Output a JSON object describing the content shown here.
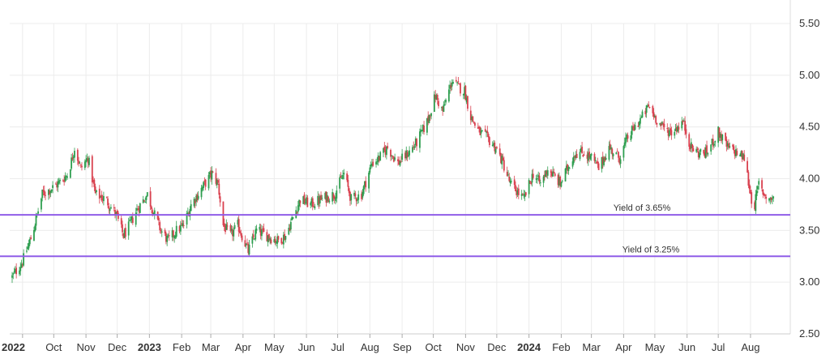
{
  "chart_data": {
    "type": "candlestick",
    "y_range": [
      2.5,
      5.5
    ],
    "y_ticks": [
      "5.50",
      "5.00",
      "4.50",
      "4.00",
      "3.50",
      "3.00",
      "2.50"
    ],
    "x_labels": [
      {
        "label": "2022",
        "bold": true,
        "date": "2022-09-01"
      },
      {
        "label": "Oct",
        "date": "2022-10-01"
      },
      {
        "label": "Nov",
        "date": "2022-11-01"
      },
      {
        "label": "Dec",
        "date": "2022-12-01"
      },
      {
        "label": "2023",
        "bold": true,
        "date": "2023-01-01"
      },
      {
        "label": "Feb",
        "date": "2023-02-01"
      },
      {
        "label": "Mar",
        "date": "2023-03-01"
      },
      {
        "label": "Apr",
        "date": "2023-04-01"
      },
      {
        "label": "May",
        "date": "2023-05-01"
      },
      {
        "label": "Jun",
        "date": "2023-06-01"
      },
      {
        "label": "Jul",
        "date": "2023-07-01"
      },
      {
        "label": "Aug",
        "date": "2023-08-01"
      },
      {
        "label": "Sep",
        "date": "2023-09-01"
      },
      {
        "label": "Oct",
        "date": "2023-10-01"
      },
      {
        "label": "Nov",
        "date": "2023-11-01"
      },
      {
        "label": "Dec",
        "date": "2023-12-01"
      },
      {
        "label": "2024",
        "bold": true,
        "date": "2024-01-01"
      },
      {
        "label": "Feb",
        "date": "2024-02-01"
      },
      {
        "label": "Mar",
        "date": "2024-03-01"
      },
      {
        "label": "Apr",
        "date": "2024-04-01"
      },
      {
        "label": "May",
        "date": "2024-05-01"
      },
      {
        "label": "Jun",
        "date": "2024-06-01"
      },
      {
        "label": "Jul",
        "date": "2024-07-01"
      },
      {
        "label": "Aug",
        "date": "2024-08-01"
      }
    ],
    "series_close": [
      [
        "2022-08-22",
        3.05
      ],
      [
        "2022-09-01",
        3.2
      ],
      [
        "2022-09-10",
        3.45
      ],
      [
        "2022-09-20",
        3.85
      ],
      [
        "2022-09-28",
        3.9
      ],
      [
        "2022-10-05",
        3.95
      ],
      [
        "2022-10-15",
        4.05
      ],
      [
        "2022-10-21",
        4.3
      ],
      [
        "2022-10-27",
        4.1
      ],
      [
        "2022-11-03",
        4.2
      ],
      [
        "2022-11-10",
        3.85
      ],
      [
        "2022-11-20",
        3.8
      ],
      [
        "2022-11-30",
        3.65
      ],
      [
        "2022-12-07",
        3.45
      ],
      [
        "2022-12-13",
        3.55
      ],
      [
        "2022-12-20",
        3.7
      ],
      [
        "2022-12-30",
        3.85
      ],
      [
        "2023-01-06",
        3.65
      ],
      [
        "2023-01-12",
        3.5
      ],
      [
        "2023-01-19",
        3.4
      ],
      [
        "2023-01-27",
        3.5
      ],
      [
        "2023-02-03",
        3.55
      ],
      [
        "2023-02-10",
        3.75
      ],
      [
        "2023-02-20",
        3.9
      ],
      [
        "2023-03-02",
        4.05
      ],
      [
        "2023-03-08",
        3.95
      ],
      [
        "2023-03-13",
        3.55
      ],
      [
        "2023-03-20",
        3.45
      ],
      [
        "2023-03-27",
        3.55
      ],
      [
        "2023-04-06",
        3.3
      ],
      [
        "2023-04-14",
        3.5
      ],
      [
        "2023-04-24",
        3.45
      ],
      [
        "2023-05-04",
        3.4
      ],
      [
        "2023-05-12",
        3.45
      ],
      [
        "2023-05-26",
        3.8
      ],
      [
        "2023-06-05",
        3.75
      ],
      [
        "2023-06-15",
        3.8
      ],
      [
        "2023-06-28",
        3.85
      ],
      [
        "2023-07-07",
        4.05
      ],
      [
        "2023-07-14",
        3.8
      ],
      [
        "2023-07-24",
        3.85
      ],
      [
        "2023-08-03",
        4.15
      ],
      [
        "2023-08-10",
        4.2
      ],
      [
        "2023-08-18",
        4.3
      ],
      [
        "2023-08-28",
        4.15
      ],
      [
        "2023-09-07",
        4.25
      ],
      [
        "2023-09-15",
        4.35
      ],
      [
        "2023-09-25",
        4.55
      ],
      [
        "2023-10-03",
        4.8
      ],
      [
        "2023-10-10",
        4.65
      ],
      [
        "2023-10-19",
        4.95
      ],
      [
        "2023-10-23",
        4.9
      ],
      [
        "2023-10-31",
        4.85
      ],
      [
        "2023-11-06",
        4.6
      ],
      [
        "2023-11-14",
        4.45
      ],
      [
        "2023-11-21",
        4.4
      ],
      [
        "2023-11-30",
        4.3
      ],
      [
        "2023-12-07",
        4.15
      ],
      [
        "2023-12-14",
        3.95
      ],
      [
        "2023-12-27",
        3.8
      ],
      [
        "2024-01-05",
        4.05
      ],
      [
        "2024-01-12",
        3.95
      ],
      [
        "2024-01-19",
        4.1
      ],
      [
        "2024-01-31",
        3.95
      ],
      [
        "2024-02-07",
        4.1
      ],
      [
        "2024-02-14",
        4.25
      ],
      [
        "2024-02-23",
        4.25
      ],
      [
        "2024-03-01",
        4.2
      ],
      [
        "2024-03-08",
        4.1
      ],
      [
        "2024-03-18",
        4.3
      ],
      [
        "2024-03-28",
        4.2
      ],
      [
        "2024-04-05",
        4.4
      ],
      [
        "2024-04-12",
        4.5
      ],
      [
        "2024-04-19",
        4.6
      ],
      [
        "2024-04-25",
        4.7
      ],
      [
        "2024-05-01",
        4.6
      ],
      [
        "2024-05-08",
        4.5
      ],
      [
        "2024-05-17",
        4.45
      ],
      [
        "2024-05-28",
        4.55
      ],
      [
        "2024-06-05",
        4.3
      ],
      [
        "2024-06-12",
        4.25
      ],
      [
        "2024-06-20",
        4.25
      ],
      [
        "2024-07-01",
        4.45
      ],
      [
        "2024-07-10",
        4.3
      ],
      [
        "2024-07-19",
        4.25
      ],
      [
        "2024-07-26",
        4.2
      ],
      [
        "2024-08-02",
        3.8
      ],
      [
        "2024-08-05",
        3.75
      ],
      [
        "2024-08-09",
        3.95
      ],
      [
        "2024-08-14",
        3.85
      ],
      [
        "2024-08-20",
        3.8
      ],
      [
        "2024-08-23",
        3.82
      ]
    ],
    "horizontal_lines": [
      {
        "value": 3.65,
        "label": "Yield of 3.65%",
        "color": "#8f5de8"
      },
      {
        "value": 3.25,
        "label": "Yield of 3.25%",
        "color": "#8f5de8"
      }
    ],
    "colors": {
      "up": "#2e9e4f",
      "down": "#d9414f",
      "grid": "#ececec",
      "line": "#8f5de8"
    },
    "grid": true
  }
}
